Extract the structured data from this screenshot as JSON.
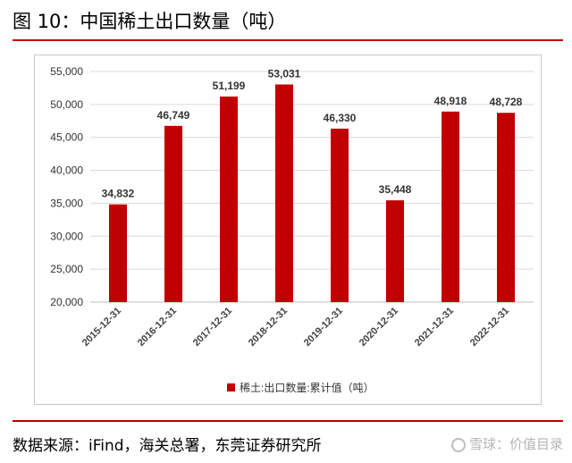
{
  "header": {
    "title": "图 10：中国稀土出口数量（吨）"
  },
  "footer": {
    "source": "数据来源：iFind，海关总署，东莞证券研究所",
    "watermark": "雪球：价值目录"
  },
  "colors": {
    "bar": "#c00000",
    "rule": "#c00000",
    "grid": "#d9d9d9"
  },
  "chart_data": {
    "type": "bar",
    "title": "",
    "xlabel": "",
    "ylabel": "",
    "categories": [
      "2015-12-31",
      "2016-12-31",
      "2017-12-31",
      "2018-12-31",
      "2019-12-31",
      "2020-12-31",
      "2021-12-31",
      "2022-12-31"
    ],
    "series": [
      {
        "name": "稀土:出口数量:累计值（吨）",
        "values": [
          34832,
          46749,
          51199,
          53031,
          46330,
          35448,
          48918,
          48728
        ]
      }
    ],
    "ylim": [
      20000,
      55000
    ],
    "yticks": [
      "20,000",
      "25,000",
      "30,000",
      "35,000",
      "40,000",
      "45,000",
      "50,000",
      "55,000"
    ],
    "data_labels": [
      "34,832",
      "46,749",
      "51,199",
      "53,031",
      "46,330",
      "35,448",
      "48,918",
      "48,728"
    ],
    "grid": true,
    "legend_position": "bottom"
  }
}
